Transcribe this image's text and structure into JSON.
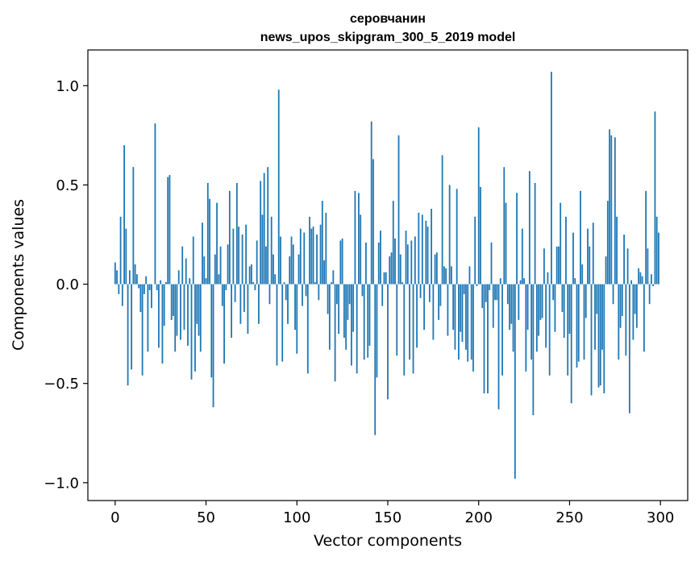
{
  "chart_data": {
    "type": "bar",
    "title_lines": [
      "серовчанин",
      "news_upos_skipgram_300_5_2019 model"
    ],
    "xlabel": "Vector components",
    "ylabel": "Components values",
    "xlim": [
      -15,
      315
    ],
    "ylim": [
      -1.09,
      1.18
    ],
    "x_ticks": [
      0,
      50,
      100,
      150,
      200,
      250,
      300
    ],
    "x_tick_labels": [
      "0",
      "50",
      "100",
      "150",
      "200",
      "250",
      "300"
    ],
    "y_ticks": [
      -1.0,
      -0.5,
      0.0,
      0.5,
      1.0
    ],
    "y_tick_labels": [
      "−1.0",
      "−0.5",
      "0.0",
      "0.5",
      "1.0"
    ],
    "grid": false,
    "legend": "none",
    "bar_color": "#1f77b4",
    "x": "0..299",
    "values": [
      0.11,
      0.07,
      -0.05,
      0.34,
      -0.11,
      0.7,
      0.28,
      -0.51,
      0.07,
      -0.43,
      0.59,
      0.1,
      0.05,
      -0.02,
      -0.14,
      -0.46,
      -0.05,
      0.04,
      -0.34,
      -0.03,
      -0.12,
      0.0,
      0.81,
      -0.03,
      -0.32,
      0.02,
      -0.4,
      -0.21,
      0.01,
      0.54,
      0.55,
      -0.18,
      -0.16,
      -0.34,
      -0.26,
      0.07,
      -0.28,
      0.19,
      -0.23,
      0.13,
      -0.31,
      0.03,
      -0.48,
      0.24,
      -0.44,
      -0.2,
      -0.26,
      -0.34,
      0.31,
      0.14,
      0.03,
      0.51,
      0.43,
      -0.47,
      -0.62,
      0.15,
      0.41,
      0.05,
      0.19,
      -0.11,
      -0.4,
      -0.03,
      0.2,
      0.47,
      -0.27,
      0.28,
      -0.09,
      0.51,
      0.29,
      -0.2,
      0.25,
      -0.14,
      0.3,
      -0.25,
      0.09,
      0.1,
      0.01,
      -0.03,
      0.22,
      -0.2,
      0.52,
      0.35,
      0.56,
      0.19,
      0.59,
      -0.1,
      0.34,
      0.15,
      0.05,
      -0.41,
      0.98,
      0.24,
      -0.39,
      0.01,
      -0.08,
      -0.2,
      0.14,
      0.24,
      0.2,
      -0.23,
      -0.35,
      0.15,
      0.28,
      -0.11,
      0.26,
      -0.06,
      -0.45,
      0.34,
      0.28,
      0.29,
      0.01,
      0.25,
      -0.08,
      0.3,
      0.42,
      0.12,
      0.36,
      -0.15,
      -0.33,
      0.01,
      0.07,
      -0.49,
      -0.1,
      -0.25,
      0.22,
      0.23,
      -0.27,
      -0.33,
      -0.18,
      -0.1,
      -0.41,
      -0.24,
      0.47,
      -0.45,
      0.46,
      0.35,
      -0.06,
      -0.38,
      0.21,
      -0.37,
      -0.31,
      0.82,
      0.63,
      -0.76,
      -0.47,
      0.21,
      0.27,
      -0.11,
      0.06,
      0.06,
      -0.58,
      0.14,
      0.16,
      0.42,
      0.23,
      -0.36,
      0.75,
      0.15,
      0.01,
      -0.46,
      0.27,
      0.2,
      -0.38,
      0.22,
      -0.45,
      0.24,
      -0.32,
      0.36,
      -0.07,
      0.35,
      -0.23,
      0.32,
      0.29,
      -0.09,
      0.38,
      -0.28,
      0.15,
      0.16,
      -0.18,
      -0.11,
      0.65,
      0.09,
      0.08,
      -0.26,
      0.5,
      0.09,
      -0.23,
      -0.33,
      0.48,
      -0.38,
      -0.24,
      -0.29,
      -0.05,
      -0.33,
      -0.39,
      0.09,
      -0.38,
      -0.44,
      0.34,
      -0.01,
      0.79,
      0.49,
      -0.12,
      -0.55,
      -0.09,
      -0.55,
      -0.03,
      0.21,
      -0.22,
      -0.08,
      -0.08,
      -0.63,
      0.03,
      -0.46,
      0.59,
      0.41,
      -0.1,
      -0.23,
      -0.2,
      -0.34,
      -0.98,
      0.46,
      -0.18,
      0.02,
      0.28,
      0.03,
      -0.44,
      -0.23,
      0.57,
      -0.38,
      -0.66,
      0.51,
      -0.34,
      -0.26,
      -0.18,
      -0.17,
      0.18,
      -0.32,
      0.06,
      -0.46,
      1.07,
      -0.08,
      -0.24,
      0.19,
      0.19,
      0.41,
      -0.14,
      -0.27,
      0.34,
      -0.46,
      -0.25,
      -0.6,
      0.26,
      0.03,
      -0.42,
      -0.39,
      0.47,
      0.1,
      -0.38,
      -0.17,
      0.28,
      0.19,
      -0.56,
      0.31,
      -0.33,
      -0.15,
      -0.52,
      -0.51,
      -0.33,
      -0.55,
      0.14,
      0.42,
      0.78,
      0.75,
      -0.1,
      0.74,
      0.34,
      -0.38,
      -0.22,
      -0.16,
      0.25,
      -0.36,
      0.18,
      -0.65,
      0.02,
      -0.28,
      -0.15,
      -0.22,
      0.08,
      0.06,
      0.04,
      -0.34,
      0.47,
      0.18,
      -0.1,
      0.05,
      -0.01,
      0.87,
      0.34,
      0.26
    ]
  }
}
